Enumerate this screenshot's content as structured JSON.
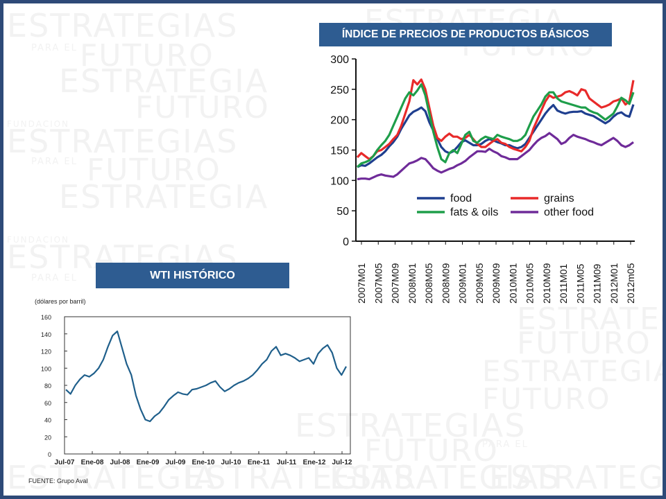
{
  "slide": {
    "banner_top": "ÍNDICE DE PRECIOS DE  PRODUCTOS BÁSICOS",
    "banner_bottom": "WTI HISTÓRICO",
    "source": "FUENTE: Grupo Aval",
    "watermark_text": [
      "ESTRATEGIAS",
      "ESTRATEGIA",
      "FUTURO",
      "PARA EL",
      "FUNDACION"
    ],
    "colors": {
      "frame": "#2e4a78",
      "banner": "#2e5c91",
      "watermark": "#f2f2f2"
    }
  },
  "chart_data": [
    {
      "type": "line",
      "title": "",
      "xlabel": "",
      "ylabel": "",
      "ylim": [
        0,
        300
      ],
      "yticks": [
        0,
        50,
        100,
        150,
        200,
        250,
        300
      ],
      "x_tick_labels": [
        "2007M01",
        "2007M05",
        "2007M09",
        "2008M01",
        "2008M05",
        "2008M09",
        "2009M01",
        "2009M05",
        "2009M09",
        "2010M01",
        "2010M05",
        "2010M09",
        "2011M01",
        "2011M05",
        "2011M09",
        "2012M01",
        "2012m05"
      ],
      "grid": false,
      "legend_position": "bottom-center",
      "series": [
        {
          "name": "food",
          "color": "#1f3f8f",
          "values": [
            122,
            125,
            124,
            128,
            133,
            138,
            142,
            148,
            156,
            163,
            172,
            185,
            196,
            207,
            213,
            216,
            220,
            214,
            196,
            182,
            168,
            155,
            148,
            145,
            148,
            155,
            163,
            166,
            162,
            158,
            158,
            160,
            165,
            168,
            166,
            163,
            161,
            158,
            158,
            155,
            153,
            155,
            160,
            170,
            180,
            190,
            200,
            210,
            218,
            224,
            215,
            212,
            210,
            212,
            213,
            213,
            214,
            210,
            208,
            206,
            202,
            198,
            194,
            198,
            205,
            210,
            212,
            207,
            205,
            225
          ]
        },
        {
          "name": "grains",
          "color": "#e82a2a",
          "values": [
            138,
            145,
            140,
            135,
            140,
            148,
            150,
            155,
            160,
            168,
            175,
            190,
            210,
            230,
            265,
            258,
            266,
            250,
            220,
            190,
            170,
            165,
            172,
            177,
            172,
            172,
            168,
            170,
            175,
            168,
            160,
            155,
            155,
            160,
            165,
            168,
            162,
            160,
            155,
            152,
            150,
            148,
            155,
            165,
            185,
            200,
            215,
            230,
            240,
            236,
            238,
            240,
            245,
            247,
            244,
            240,
            250,
            248,
            235,
            230,
            225,
            220,
            222,
            225,
            230,
            232,
            235,
            225,
            230,
            265
          ]
        },
        {
          "name": "fats & oils",
          "color": "#1e9e4a",
          "values": [
            122,
            128,
            130,
            133,
            140,
            150,
            158,
            165,
            175,
            190,
            205,
            220,
            235,
            245,
            240,
            248,
            258,
            240,
            210,
            180,
            155,
            135,
            130,
            145,
            150,
            145,
            160,
            175,
            180,
            165,
            162,
            168,
            172,
            170,
            168,
            175,
            172,
            170,
            168,
            165,
            165,
            168,
            175,
            190,
            205,
            215,
            225,
            238,
            245,
            245,
            235,
            230,
            228,
            226,
            224,
            222,
            220,
            220,
            215,
            212,
            210,
            205,
            200,
            205,
            210,
            222,
            236,
            232,
            226,
            245
          ]
        },
        {
          "name": "other food",
          "color": "#6f2b99",
          "values": [
            102,
            103,
            103,
            102,
            105,
            108,
            110,
            108,
            107,
            106,
            110,
            116,
            122,
            128,
            130,
            133,
            137,
            135,
            128,
            120,
            116,
            113,
            116,
            119,
            121,
            125,
            128,
            132,
            138,
            143,
            148,
            148,
            147,
            152,
            148,
            145,
            140,
            138,
            135,
            135,
            135,
            140,
            145,
            150,
            158,
            165,
            170,
            173,
            178,
            173,
            168,
            160,
            163,
            170,
            175,
            172,
            170,
            168,
            165,
            163,
            160,
            158,
            162,
            166,
            170,
            165,
            158,
            155,
            158,
            163
          ]
        }
      ]
    },
    {
      "type": "line",
      "title": "",
      "ylabel": "(dólares por barril)",
      "xlabel": "",
      "ylim": [
        0,
        160
      ],
      "yticks": [
        0,
        20,
        40,
        60,
        80,
        100,
        120,
        140,
        160
      ],
      "x_tick_labels": [
        "Jul-07",
        "Ene-08",
        "Jul-08",
        "Ene-09",
        "Jul-09",
        "Ene-10",
        "Jul-10",
        "Ene-11",
        "Jul-11",
        "Ene-12",
        "Jul-12"
      ],
      "grid": false,
      "legend_position": "none",
      "series": [
        {
          "name": "",
          "color": "#1f5f8b",
          "x": [
            0,
            1,
            2,
            3,
            4,
            5,
            6,
            7,
            8,
            9,
            10,
            11,
            12,
            13,
            14,
            15,
            16,
            17,
            18,
            19,
            20,
            21,
            22,
            23,
            24,
            25,
            26,
            27,
            28,
            29,
            30,
            31,
            32,
            33,
            34,
            35,
            36,
            37,
            38,
            39,
            40,
            41,
            42,
            43,
            44,
            45,
            46,
            47,
            48,
            49,
            50,
            51,
            52,
            53,
            54,
            55,
            56,
            57,
            58,
            59,
            60
          ],
          "values": [
            75,
            70,
            80,
            87,
            92,
            90,
            94,
            100,
            110,
            125,
            138,
            143,
            124,
            105,
            92,
            68,
            52,
            40,
            38,
            44,
            48,
            55,
            63,
            68,
            72,
            70,
            69,
            75,
            76,
            78,
            80,
            83,
            85,
            78,
            73,
            76,
            80,
            83,
            85,
            88,
            92,
            98,
            105,
            110,
            120,
            125,
            115,
            117,
            115,
            112,
            108,
            110,
            112,
            105,
            117,
            123,
            127,
            118,
            100,
            92,
            102
          ]
        }
      ]
    }
  ]
}
